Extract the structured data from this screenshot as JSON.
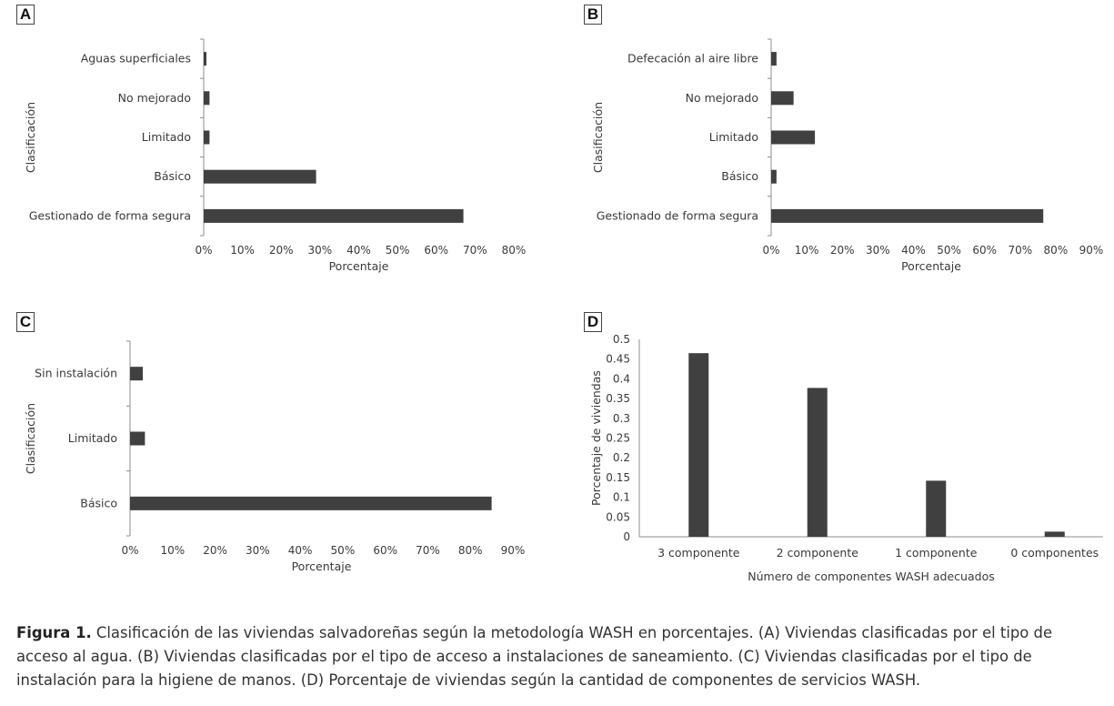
{
  "colors": {
    "bar": "#404040",
    "axis": "#8c8c8c",
    "text": "#3a3a3a"
  },
  "panels": [
    {
      "letter": "A"
    },
    {
      "letter": "B"
    },
    {
      "letter": "C"
    },
    {
      "letter": "D"
    }
  ],
  "chart_data": [
    {
      "type": "bar",
      "orientation": "horizontal",
      "categories": [
        "Gestionado de forma segura",
        "Básico",
        "Limitado",
        "No mejorado",
        "Aguas superficiales"
      ],
      "values": [
        67,
        29,
        1.5,
        1.5,
        0.7
      ],
      "xlabel": "Porcentaje",
      "ylabel": "Clasificación",
      "xlim": [
        0,
        80
      ],
      "xticks": [
        "0%",
        "10%",
        "20%",
        "30%",
        "40%",
        "50%",
        "60%",
        "70%",
        "80%"
      ]
    },
    {
      "type": "bar",
      "orientation": "horizontal",
      "categories": [
        "Gestionado de forma segura",
        "Básico",
        "Limitado",
        "No mejorado",
        "Defecación al aire libre"
      ],
      "values": [
        76.5,
        1.5,
        12.3,
        6.3,
        1.5
      ],
      "xlabel": "Porcentaje",
      "ylabel": "Clasificación",
      "xlim": [
        0,
        90
      ],
      "xticks": [
        "0%",
        "10%",
        "20%",
        "30%",
        "40%",
        "50%",
        "60%",
        "70%",
        "80%",
        "90%"
      ]
    },
    {
      "type": "bar",
      "orientation": "horizontal",
      "categories": [
        "Básico",
        "Limitado",
        "Sin instalación"
      ],
      "values": [
        85,
        3.5,
        3
      ],
      "xlabel": "Porcentaje",
      "ylabel": "Clasificación",
      "xlim": [
        0,
        90
      ],
      "xticks": [
        "0%",
        "10%",
        "20%",
        "30%",
        "40%",
        "50%",
        "60%",
        "70%",
        "80%",
        "90%"
      ]
    },
    {
      "type": "bar",
      "orientation": "vertical",
      "categories": [
        "3 componente",
        "2 componente",
        "1 componente",
        "0 componentes"
      ],
      "values": [
        0.465,
        0.377,
        0.142,
        0.013
      ],
      "xlabel": "Número de componentes WASH adecuados",
      "ylabel": "Porcentaje de viviendas",
      "ylim": [
        0,
        0.5
      ],
      "yticks": [
        "0",
        "0.05",
        "0.1",
        "0.15",
        "0.2",
        "0.25",
        "0.3",
        "0.35",
        "0.4",
        "0.45",
        "0.5"
      ]
    }
  ],
  "caption": {
    "label": "Figura 1.",
    "text": " Clasificación de las viviendas salvadoreñas según la metodología WASH en porcentajes. (A) Viviendas clasificadas por el tipo de acceso al agua. (B) Viviendas clasificadas por el tipo de acceso a instalaciones de saneamiento. (C) Viviendas clasificadas por el tipo de instalación para la higiene de manos. (D) Porcentaje de viviendas según la cantidad de componentes de servicios WASH."
  }
}
